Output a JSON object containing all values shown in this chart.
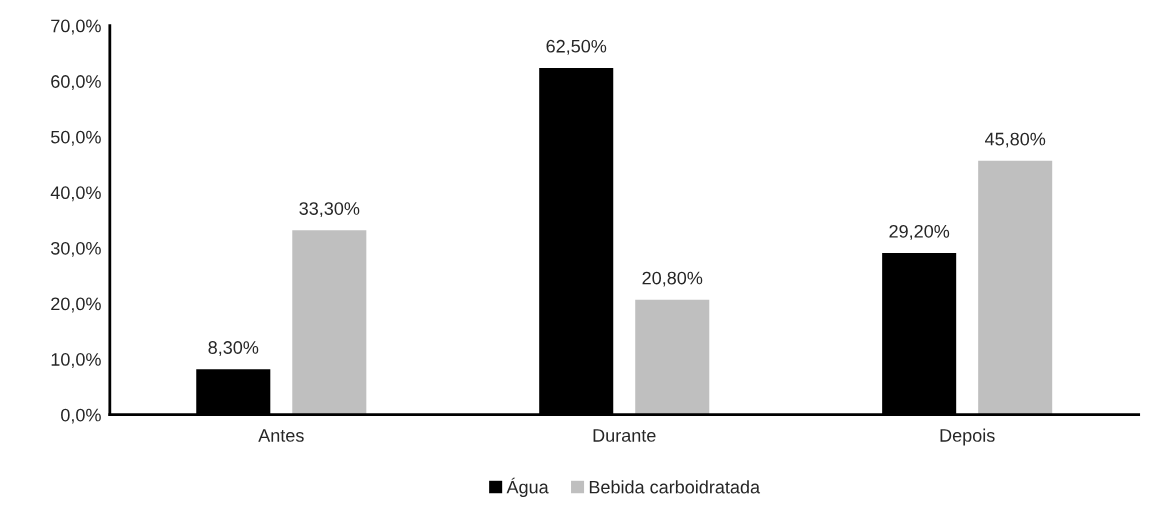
{
  "chart_data": {
    "type": "bar",
    "categories": [
      "Antes",
      "Durante",
      "Depois"
    ],
    "series": [
      {
        "name": "Água",
        "color": "#000000",
        "values": [
          8.3,
          62.5,
          29.2
        ],
        "value_labels": [
          "8,30%",
          "62,50%",
          "29,20%"
        ]
      },
      {
        "name": "Bebida carboidratada",
        "color": "#bfbfbf",
        "values": [
          33.3,
          20.8,
          45.8
        ],
        "value_labels": [
          "33,30%",
          "20,80%",
          "45,80%"
        ]
      }
    ],
    "ylim": [
      0,
      70
    ],
    "yticks": [
      {
        "value": 0,
        "label": "0,0%"
      },
      {
        "value": 10,
        "label": "10,0%"
      },
      {
        "value": 20,
        "label": "20,0%"
      },
      {
        "value": 30,
        "label": "30,0%"
      },
      {
        "value": 40,
        "label": "40,0%"
      },
      {
        "value": 50,
        "label": "50,0%"
      },
      {
        "value": 60,
        "label": "60,0%"
      },
      {
        "value": 70,
        "label": "70,0%"
      }
    ],
    "grid": false,
    "legend": "bottom"
  }
}
